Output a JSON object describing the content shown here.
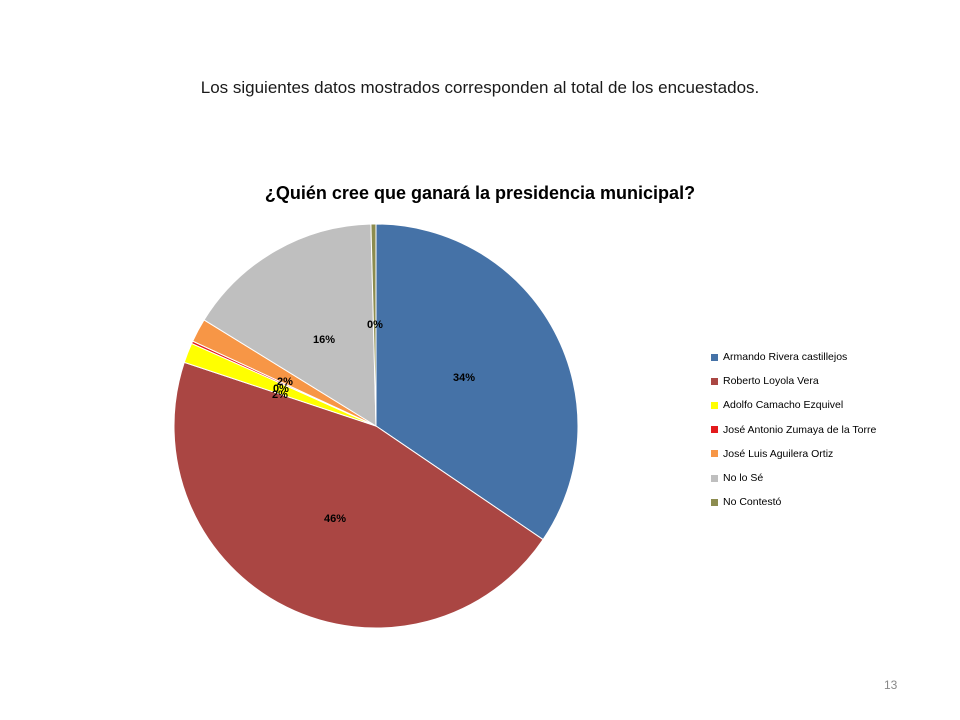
{
  "intro_text": "Los siguientes datos mostrados corresponden  al total de los encuestados.",
  "page_number": "13",
  "chart_data": {
    "type": "pie",
    "title": "¿Quién cree que ganará la presidencia municipal?",
    "legend_position": "right",
    "series": [
      {
        "name": "Armando Rivera castillejos",
        "value": 34.5,
        "label": "34%",
        "color": "#4572A7"
      },
      {
        "name": "Roberto Loyola Vera",
        "value": 45.6,
        "label": "46%",
        "color": "#AA4643"
      },
      {
        "name": "Adolfo Camacho Ezquivel",
        "value": 1.6,
        "label": "2%",
        "color": "#FFFF00"
      },
      {
        "name": "José Antonio Zumaya de la Torre",
        "value": 0.2,
        "label": "0%",
        "color": "#E31A1C"
      },
      {
        "name": "José Luis Aguilera Ortiz",
        "value": 1.9,
        "label": "2%",
        "color": "#F79646"
      },
      {
        "name": "No lo Sé",
        "value": 15.8,
        "label": "16%",
        "color": "#BFBFBF"
      },
      {
        "name": "No Contestó",
        "value": 0.4,
        "label": "0%",
        "color": "#8C8C4F"
      }
    ]
  }
}
